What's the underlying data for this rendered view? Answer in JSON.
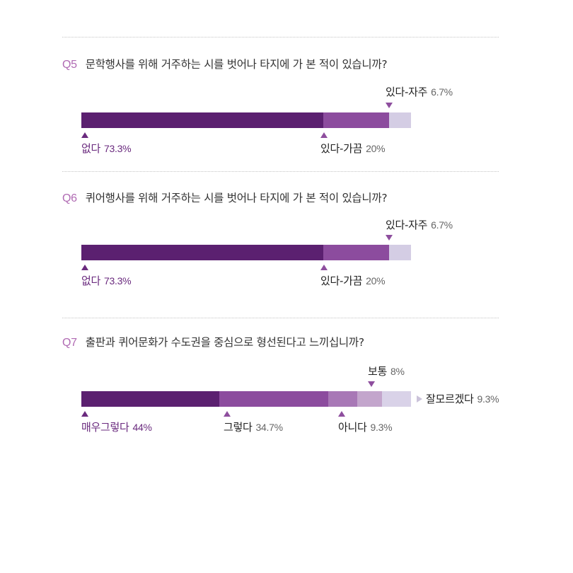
{
  "chart_data": [
    {
      "type": "bar",
      "stacked": true,
      "orientation": "horizontal",
      "question_no": "Q5",
      "question": "문학행사를 위해 거주하는 시를 벗어나 타지에 가 본 적이 있습니까?",
      "unit": "%",
      "segments": [
        {
          "label": "없다",
          "value": 73.3,
          "value_text": "73.3%",
          "color": "#5b2070"
        },
        {
          "label": "있다-가끔",
          "value": 20,
          "value_text": "20%",
          "color": "#8c4c9e"
        },
        {
          "label": "있다-자주",
          "value": 6.7,
          "value_text": "6.7%",
          "color": "#d4cde4"
        }
      ]
    },
    {
      "type": "bar",
      "stacked": true,
      "orientation": "horizontal",
      "question_no": "Q6",
      "question": "퀴어행사를 위해 거주하는 시를 벗어나 타지에 가 본 적이 있습니까?",
      "unit": "%",
      "segments": [
        {
          "label": "없다",
          "value": 73.3,
          "value_text": "73.3%",
          "color": "#5b2070"
        },
        {
          "label": "있다-가끔",
          "value": 20,
          "value_text": "20%",
          "color": "#8c4c9e"
        },
        {
          "label": "있다-자주",
          "value": 6.7,
          "value_text": "6.7%",
          "color": "#d4cde4"
        }
      ]
    },
    {
      "type": "bar",
      "stacked": true,
      "orientation": "horizontal",
      "question_no": "Q7",
      "question": "출판과 퀴어문화가 수도권을 중심으로 형선된다고 느끼십니까?",
      "unit": "%",
      "segments": [
        {
          "label": "매우그렇다",
          "value": 44,
          "value_text": "44%",
          "color": "#5b2070"
        },
        {
          "label": "그렇다",
          "value": 34.7,
          "value_text": "34.7%",
          "color": "#8c4c9e"
        },
        {
          "label": "아니다",
          "value": 9.3,
          "value_text": "9.3%",
          "color": "#a878b6"
        },
        {
          "label": "보통",
          "value": 8,
          "value_text": "8%",
          "color": "#c3a5cc"
        },
        {
          "label": "잘모르겠다",
          "value": 9.3,
          "value_text": "9.3%",
          "color": "#d9d2e8"
        }
      ]
    }
  ]
}
